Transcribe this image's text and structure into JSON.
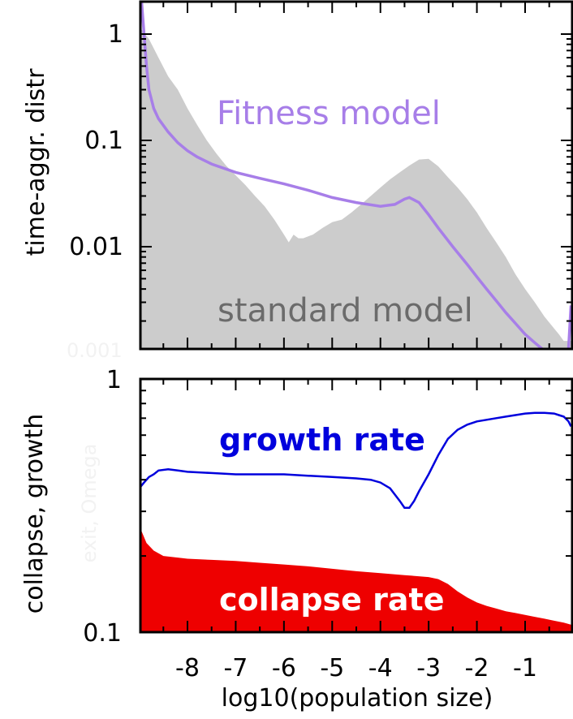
{
  "colors": {
    "fitness_line": "#a77ee8",
    "standard_area": "#cccccc",
    "growth_line": "#0000dd",
    "collapse_area": "#ee0000",
    "standard_label": "#6b6b6b"
  },
  "x_tick_labels": [
    "-8",
    "-7",
    "-6",
    "-5",
    "-4",
    "-3",
    "-2",
    "-1"
  ],
  "xlabel": "log10(population size)",
  "chart_data": [
    {
      "type": "area",
      "ylabel": "time-aggr. distr",
      "y_scale": "log",
      "xlim": [
        -9.0,
        -0.05
      ],
      "ylim": [
        0.001,
        2.0
      ],
      "y_tick_labels": [
        "1",
        "0.1",
        "0.01"
      ],
      "y_tick_values": [
        1,
        0.1,
        0.01
      ],
      "ghost_tick_label": "0.001",
      "grid": false,
      "series": [
        {
          "name": "standard model",
          "style": "filled-area",
          "x": [
            -8.95,
            -8.8,
            -8.6,
            -8.4,
            -8.2,
            -8.0,
            -7.8,
            -7.6,
            -7.4,
            -7.2,
            -7.0,
            -6.8,
            -6.6,
            -6.4,
            -6.2,
            -6.0,
            -5.9,
            -5.8,
            -5.7,
            -5.6,
            -5.4,
            -5.2,
            -5.0,
            -4.8,
            -4.6,
            -4.4,
            -4.2,
            -4.0,
            -3.8,
            -3.6,
            -3.4,
            -3.2,
            -3.0,
            -2.8,
            -2.6,
            -2.4,
            -2.2,
            -2.0,
            -1.8,
            -1.6,
            -1.4,
            -1.2,
            -1.0,
            -0.8,
            -0.6,
            -0.4,
            -0.3,
            -0.2,
            -0.1,
            -0.05
          ],
          "y": [
            1.1,
            0.9,
            0.6,
            0.4,
            0.3,
            0.2,
            0.14,
            0.1,
            0.075,
            0.058,
            0.047,
            0.038,
            0.03,
            0.024,
            0.018,
            0.013,
            0.011,
            0.013,
            0.012,
            0.012,
            0.013,
            0.015,
            0.017,
            0.018,
            0.021,
            0.025,
            0.03,
            0.036,
            0.043,
            0.05,
            0.058,
            0.066,
            0.067,
            0.057,
            0.045,
            0.036,
            0.028,
            0.021,
            0.015,
            0.011,
            0.008,
            0.0055,
            0.004,
            0.003,
            0.0022,
            0.0017,
            0.0015,
            0.0013,
            0.0013,
            0.0013
          ]
        },
        {
          "name": "Fitness model",
          "style": "line",
          "x": [
            -8.95,
            -8.9,
            -8.85,
            -8.8,
            -8.7,
            -8.6,
            -8.4,
            -8.2,
            -8.0,
            -7.8,
            -7.5,
            -7.0,
            -6.5,
            -6.0,
            -5.5,
            -5.0,
            -4.5,
            -4.0,
            -3.7,
            -3.5,
            -3.4,
            -3.2,
            -3.0,
            -2.8,
            -2.5,
            -2.2,
            -2.0,
            -1.8,
            -1.6,
            -1.4,
            -1.2,
            -1.0,
            -0.8,
            -0.6,
            -0.4,
            -0.25,
            -0.15,
            -0.1,
            -0.05
          ],
          "y": [
            2.0,
            1.0,
            0.5,
            0.3,
            0.2,
            0.16,
            0.12,
            0.095,
            0.08,
            0.07,
            0.06,
            0.05,
            0.044,
            0.039,
            0.034,
            0.029,
            0.026,
            0.024,
            0.025,
            0.028,
            0.029,
            0.026,
            0.02,
            0.015,
            0.01,
            0.0068,
            0.0052,
            0.004,
            0.0031,
            0.0024,
            0.0019,
            0.0015,
            0.00125,
            0.00105,
            0.0009,
            0.0008,
            0.00082,
            0.0011,
            0.0028
          ]
        }
      ]
    },
    {
      "type": "area",
      "ylabel": "collapse, growth",
      "y_scale": "log",
      "xlim": [
        -9.0,
        -0.05
      ],
      "ylim": [
        0.1,
        1.0
      ],
      "y_tick_labels": [
        "1",
        "0.1"
      ],
      "y_tick_values": [
        1,
        0.1
      ],
      "ghost_label": "exit, Omega",
      "grid": false,
      "series": [
        {
          "name": "growth rate",
          "style": "line",
          "x": [
            -9.0,
            -8.9,
            -8.8,
            -8.7,
            -8.6,
            -8.4,
            -8.2,
            -8.0,
            -7.5,
            -7.0,
            -6.5,
            -6.0,
            -5.5,
            -5.0,
            -4.5,
            -4.2,
            -4.0,
            -3.8,
            -3.6,
            -3.5,
            -3.4,
            -3.3,
            -3.2,
            -3.0,
            -2.8,
            -2.6,
            -2.4,
            -2.2,
            -2.0,
            -1.8,
            -1.6,
            -1.4,
            -1.2,
            -1.0,
            -0.8,
            -0.6,
            -0.4,
            -0.3,
            -0.2,
            -0.1,
            -0.05
          ],
          "y": [
            0.37,
            0.39,
            0.41,
            0.42,
            0.435,
            0.44,
            0.435,
            0.43,
            0.425,
            0.42,
            0.42,
            0.42,
            0.415,
            0.41,
            0.405,
            0.4,
            0.39,
            0.37,
            0.33,
            0.31,
            0.31,
            0.33,
            0.36,
            0.42,
            0.5,
            0.58,
            0.63,
            0.66,
            0.68,
            0.69,
            0.7,
            0.71,
            0.72,
            0.73,
            0.735,
            0.735,
            0.73,
            0.72,
            0.71,
            0.68,
            0.65
          ]
        },
        {
          "name": "collapse rate",
          "style": "filled-area",
          "x": [
            -9.0,
            -8.95,
            -8.85,
            -8.7,
            -8.5,
            -8.2,
            -8.0,
            -7.5,
            -7.0,
            -6.5,
            -6.0,
            -5.5,
            -5.0,
            -4.5,
            -4.0,
            -3.5,
            -3.0,
            -2.8,
            -2.6,
            -2.4,
            -2.2,
            -2.0,
            -1.8,
            -1.6,
            -1.4,
            -1.2,
            -1.0,
            -0.8,
            -0.6,
            -0.4,
            -0.2,
            -0.05
          ],
          "y": [
            0.28,
            0.25,
            0.225,
            0.21,
            0.2,
            0.197,
            0.195,
            0.193,
            0.191,
            0.188,
            0.185,
            0.182,
            0.178,
            0.174,
            0.171,
            0.168,
            0.165,
            0.162,
            0.155,
            0.145,
            0.137,
            0.131,
            0.127,
            0.124,
            0.121,
            0.119,
            0.117,
            0.115,
            0.113,
            0.111,
            0.109,
            0.107
          ]
        }
      ]
    }
  ]
}
